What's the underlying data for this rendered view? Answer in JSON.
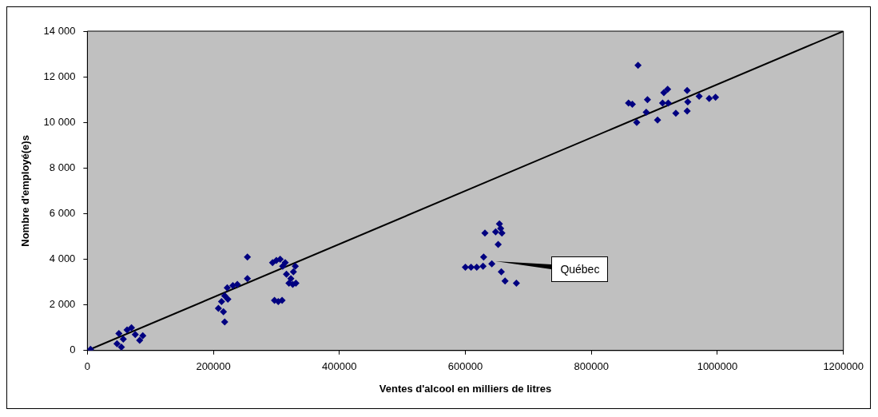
{
  "chart_data": {
    "type": "scatter",
    "xlabel": "Ventes d'alcool en milliers de litres",
    "ylabel": "Nombre d'employé(e)s",
    "xlim": [
      0,
      1200000
    ],
    "xticks": [
      0,
      200000,
      400000,
      600000,
      800000,
      1000000,
      1200000
    ],
    "ylim": [
      0,
      14000
    ],
    "yticks": [
      {
        "value": 0,
        "label": "0"
      },
      {
        "value": 2000,
        "label": "2 000"
      },
      {
        "value": 4000,
        "label": "4 000"
      },
      {
        "value": 6000,
        "label": "6 000"
      },
      {
        "value": 8000,
        "label": "8 000"
      },
      {
        "value": 10000,
        "label": "10 000"
      },
      {
        "value": 12000,
        "label": "12 000"
      },
      {
        "value": 14000,
        "label": "14 000"
      }
    ],
    "grid": false,
    "legend": false,
    "series": [
      {
        "type": "line",
        "color": "#000000",
        "marker": "none",
        "x": [
          0,
          1200000
        ],
        "values": [
          0,
          14000
        ]
      },
      {
        "color": "#000080",
        "marker": "diamond",
        "x": [
          5000,
          47000,
          50000,
          57000,
          63000,
          70000,
          76000,
          83000,
          88000,
          54000,
          208000,
          213000,
          218000,
          223000,
          222000,
          216000,
          218000,
          238000,
          254000,
          231000,
          254000,
          294000,
          300000,
          306000,
          310000,
          316000,
          323000,
          327000,
          330000,
          320000,
          326000,
          331000,
          297000,
          303000,
          309000,
          314000,
          631000,
          648000,
          654000,
          656000,
          658000,
          652000,
          600000,
          609000,
          618000,
          628000,
          629000,
          642000,
          657000,
          663000,
          681000,
          865000,
          889000,
          915000,
          921000,
          913000,
          922000,
          887000,
          872000,
          905000,
          953000,
          971000,
          987000,
          997000,
          874000,
          859000,
          952000,
          934000,
          952000
        ],
        "values": [
          50,
          300,
          750,
          500,
          900,
          1000,
          700,
          450,
          650,
          150,
          1850,
          2150,
          2400,
          2250,
          2750,
          1700,
          1250,
          2900,
          4100,
          2850,
          3150,
          3850,
          3950,
          4000,
          3700,
          3350,
          3150,
          3450,
          3700,
          2950,
          2900,
          2950,
          2200,
          2150,
          2200,
          3850,
          5150,
          5200,
          5550,
          5350,
          5150,
          4650,
          3650,
          3650,
          3650,
          3700,
          4100,
          3800,
          3450,
          3050,
          2950,
          10800,
          11000,
          11300,
          11450,
          10850,
          10850,
          10450,
          10000,
          10100,
          10900,
          11150,
          11050,
          11100,
          12500,
          10850,
          11400,
          10400,
          10500
        ]
      }
    ],
    "annotations": [
      "Québec"
    ]
  }
}
